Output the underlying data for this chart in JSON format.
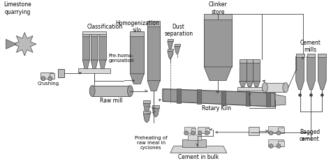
{
  "bg_color": "#ffffff",
  "line_color": "#404040",
  "fill_gray": "#999999",
  "fill_med": "#bbbbbb",
  "fill_light": "#d8d8d8",
  "fill_dark": "#707070",
  "labels": {
    "limestone": "Limestone\nquarrying",
    "crushing": "Crushing",
    "classification": "Classification",
    "homogenization": "Homogenization\nsilo",
    "pre_homo": "Pre-homo-\ngenization",
    "raw_mill": "Raw mill",
    "dust": "Dust\nseparation",
    "preheating": "Preheating of\nraw meal in\ncyclones",
    "clinker": "Clinker\nstore",
    "rotary": "Rotary Kiln",
    "cement_mills": "Cement\nmills",
    "cement_bulk": "Cement in bulk",
    "bagged": "Bagged\ncement"
  }
}
